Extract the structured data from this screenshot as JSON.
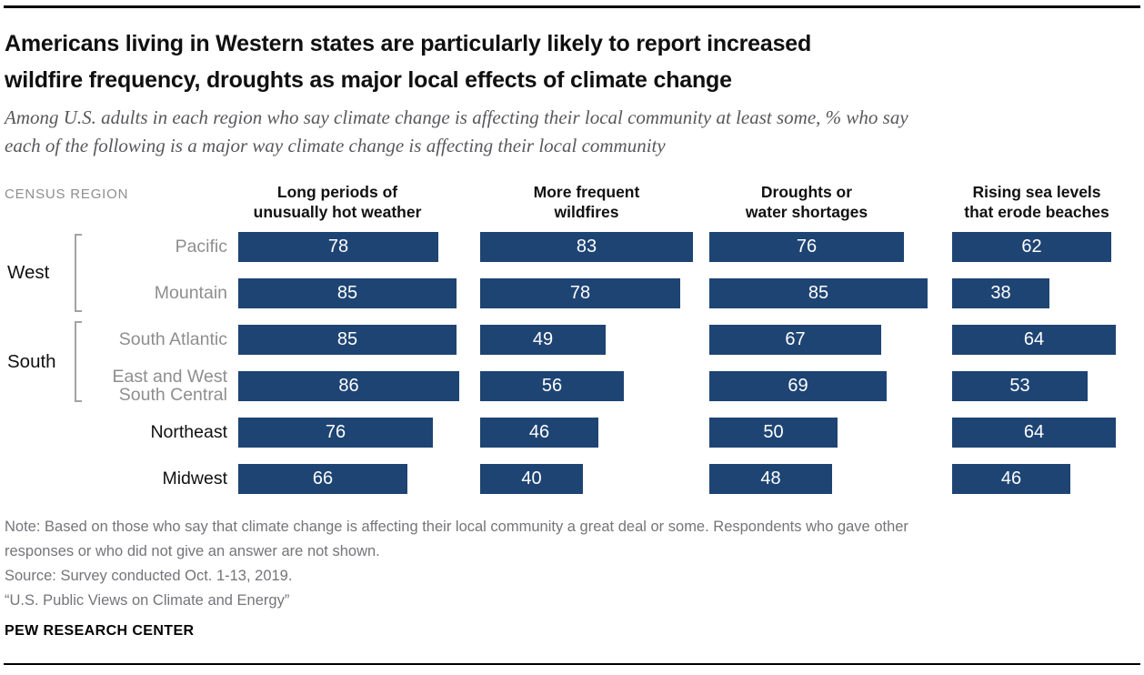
{
  "header": {
    "title_lines": [
      "Americans living in Western states are particularly likely to report increased",
      "wildfire frequency, droughts as major local effects of climate change"
    ],
    "subtitle_lines": [
      "Among U.S. adults in each region who say climate change is affecting their local community at least some, % who say",
      "each of the following is a major way climate change is affecting their local community"
    ]
  },
  "chart_data": {
    "type": "bar",
    "orientation": "horizontal",
    "unit": "%",
    "region_axis_label": "CENSUS REGION",
    "xlim": [
      0,
      100
    ],
    "bar_color": "#1e4473",
    "value_label_color": "#ffffff",
    "columns": [
      {
        "line1": "Long periods of",
        "line2": "unusually hot weather"
      },
      {
        "line1": "More frequent",
        "line2": "wildfires"
      },
      {
        "line1": "Droughts or",
        "line2": "water shortages"
      },
      {
        "line1": "Rising sea levels",
        "line2": "that erode beaches"
      }
    ],
    "groups": [
      {
        "label": "West",
        "rows": [
          "Pacific",
          "Mountain"
        ]
      },
      {
        "label": "South",
        "rows": [
          "South Atlantic",
          "East and West South Central"
        ]
      }
    ],
    "rows": [
      {
        "label_lines": [
          "Pacific"
        ],
        "group": "West",
        "values": [
          78,
          83,
          76,
          62
        ]
      },
      {
        "label_lines": [
          "Mountain"
        ],
        "group": "West",
        "values": [
          85,
          78,
          85,
          38
        ]
      },
      {
        "label_lines": [
          "South Atlantic"
        ],
        "group": "South",
        "values": [
          85,
          49,
          67,
          64
        ]
      },
      {
        "label_lines": [
          "East and West",
          "South Central"
        ],
        "group": "South",
        "values": [
          86,
          56,
          69,
          53
        ]
      },
      {
        "label_lines": [
          "Northeast"
        ],
        "group": null,
        "values": [
          76,
          46,
          50,
          64
        ]
      },
      {
        "label_lines": [
          "Midwest"
        ],
        "group": null,
        "values": [
          66,
          40,
          48,
          46
        ]
      }
    ]
  },
  "footer": {
    "lines": [
      "Note: Based on those who say that climate change is affecting their local community a great deal or some. Respondents who gave other",
      "responses or who did not give an answer are not shown.",
      "Source: Survey conducted Oct. 1-13, 2019.",
      "“U.S. Public Views on Climate and Energy”"
    ],
    "brand": "PEW RESEARCH CENTER"
  }
}
